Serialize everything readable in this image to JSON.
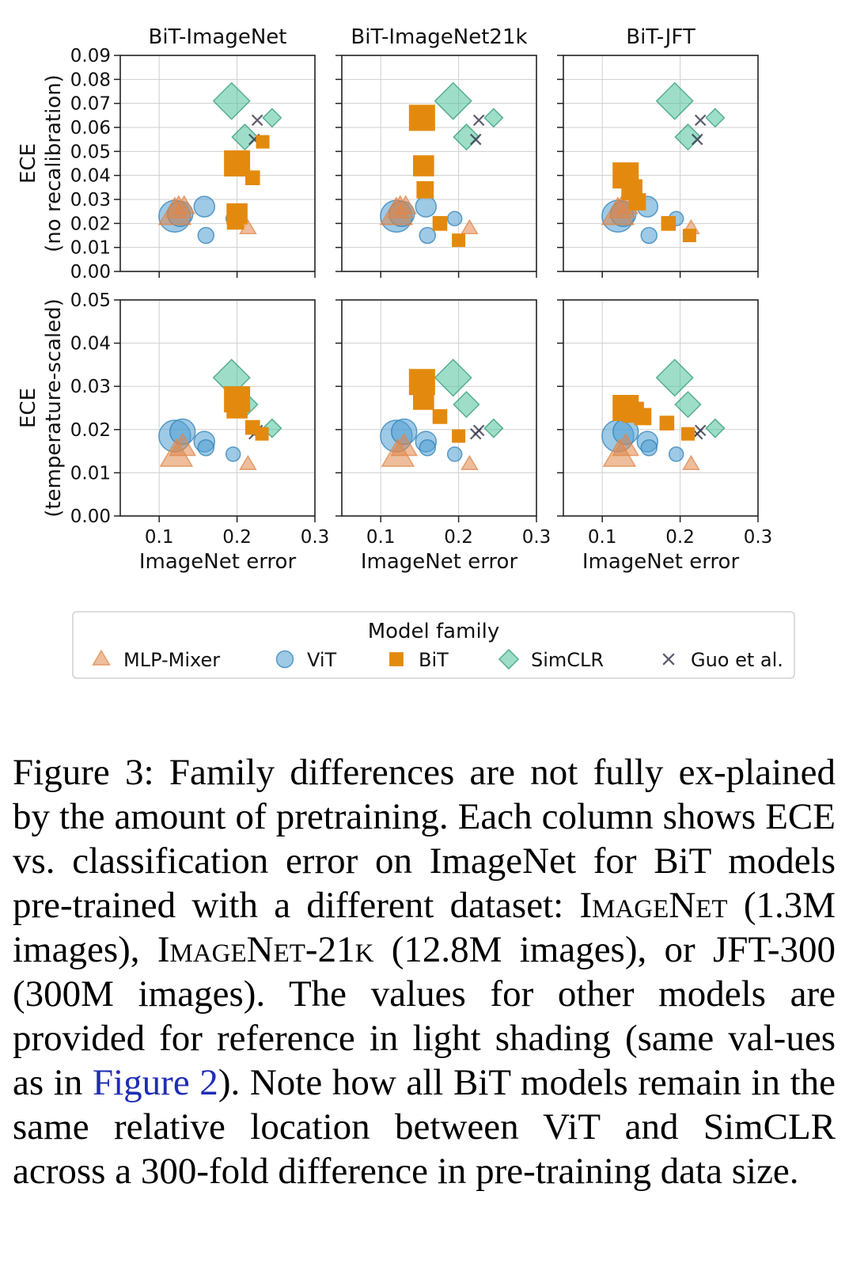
{
  "chart_data": {
    "type": "scatter",
    "columns": [
      "BiT-ImageNet",
      "BiT-ImageNet21k",
      "BiT-JFT"
    ],
    "rows": [
      {
        "ylabel": [
          "ECE",
          "(no recalibration)"
        ],
        "ylim": [
          0,
          0.09
        ],
        "yticks": [
          "0.00",
          "0.01",
          "0.02",
          "0.03",
          "0.04",
          "0.05",
          "0.06",
          "0.07",
          "0.08",
          "0.09"
        ]
      },
      {
        "ylabel": [
          "ECE",
          "(temperature-scaled)"
        ],
        "ylim": [
          0,
          0.05
        ],
        "yticks": [
          "0.00",
          "0.01",
          "0.02",
          "0.03",
          "0.04",
          "0.05"
        ]
      }
    ],
    "xlabel": "ImageNet error",
    "xlim": [
      0.05,
      0.3
    ],
    "xticks": [
      "0.1",
      "0.2",
      "0.3"
    ],
    "grid": true,
    "legend": {
      "title": "Model family",
      "placement": "bottom",
      "entries": [
        {
          "name": "MLP-Mixer",
          "marker": "triangle",
          "color": "#e0874a"
        },
        {
          "name": "ViT",
          "marker": "circle",
          "color": "#4f9fd2"
        },
        {
          "name": "BiT",
          "marker": "square",
          "color": "#e38a0e"
        },
        {
          "name": "SimCLR",
          "marker": "diamond",
          "color": "#4fc39a"
        },
        {
          "name": "Guo et al.",
          "marker": "x",
          "color": "#3d3d55"
        }
      ]
    },
    "reference_points": {
      "row1": [
        {
          "family": "MLP-Mixer",
          "x": 0.12,
          "y": 0.024,
          "size": 2.0
        },
        {
          "family": "MLP-Mixer",
          "x": 0.125,
          "y": 0.026,
          "size": 1.6
        },
        {
          "family": "MLP-Mixer",
          "x": 0.132,
          "y": 0.027,
          "size": 1.3
        },
        {
          "family": "MLP-Mixer",
          "x": 0.214,
          "y": 0.018,
          "size": 1.0
        },
        {
          "family": "ViT",
          "x": 0.12,
          "y": 0.023,
          "size": 2.0
        },
        {
          "family": "ViT",
          "x": 0.127,
          "y": 0.024,
          "size": 1.6
        },
        {
          "family": "ViT",
          "x": 0.158,
          "y": 0.027,
          "size": 1.3
        },
        {
          "family": "ViT",
          "x": 0.16,
          "y": 0.015,
          "size": 1.0
        },
        {
          "family": "ViT",
          "x": 0.195,
          "y": 0.022,
          "size": 0.9
        },
        {
          "family": "SimCLR",
          "x": 0.193,
          "y": 0.071,
          "size": 2.0
        },
        {
          "family": "SimCLR",
          "x": 0.21,
          "y": 0.056,
          "size": 1.4
        },
        {
          "family": "SimCLR",
          "x": 0.245,
          "y": 0.064,
          "size": 1.0
        },
        {
          "family": "Guo et al.",
          "x": 0.226,
          "y": 0.063,
          "size": 1.0
        },
        {
          "family": "Guo et al.",
          "x": 0.222,
          "y": 0.055,
          "size": 1.0
        }
      ],
      "row2": [
        {
          "family": "MLP-Mixer",
          "x": 0.122,
          "y": 0.014,
          "size": 2.0
        },
        {
          "family": "MLP-Mixer",
          "x": 0.13,
          "y": 0.016,
          "size": 1.6
        },
        {
          "family": "MLP-Mixer",
          "x": 0.214,
          "y": 0.012,
          "size": 1.0
        },
        {
          "family": "ViT",
          "x": 0.12,
          "y": 0.0185,
          "size": 2.0
        },
        {
          "family": "ViT",
          "x": 0.13,
          "y": 0.0195,
          "size": 1.6
        },
        {
          "family": "ViT",
          "x": 0.158,
          "y": 0.0172,
          "size": 1.3
        },
        {
          "family": "ViT",
          "x": 0.16,
          "y": 0.0158,
          "size": 1.0
        },
        {
          "family": "ViT",
          "x": 0.195,
          "y": 0.0143,
          "size": 0.9
        },
        {
          "family": "SimCLR",
          "x": 0.193,
          "y": 0.032,
          "size": 2.0
        },
        {
          "family": "SimCLR",
          "x": 0.21,
          "y": 0.0258,
          "size": 1.4
        },
        {
          "family": "SimCLR",
          "x": 0.245,
          "y": 0.0203,
          "size": 1.0
        },
        {
          "family": "Guo et al.",
          "x": 0.226,
          "y": 0.0198,
          "size": 1.0
        },
        {
          "family": "Guo et al.",
          "x": 0.222,
          "y": 0.019,
          "size": 1.0
        }
      ]
    },
    "bit_points": [
      {
        "row1": [
          {
            "x": 0.2,
            "y": 0.045,
            "size": 2.0
          },
          {
            "x": 0.2,
            "y": 0.024,
            "size": 1.6
          },
          {
            "x": 0.198,
            "y": 0.021,
            "size": 1.3
          },
          {
            "x": 0.22,
            "y": 0.039,
            "size": 1.1
          },
          {
            "x": 0.233,
            "y": 0.054,
            "size": 1.0
          }
        ],
        "row2": [
          {
            "x": 0.2,
            "y": 0.027,
            "size": 2.0
          },
          {
            "x": 0.2,
            "y": 0.025,
            "size": 1.6
          },
          {
            "x": 0.22,
            "y": 0.0205,
            "size": 1.1
          },
          {
            "x": 0.232,
            "y": 0.019,
            "size": 1.0
          }
        ]
      },
      {
        "row1": [
          {
            "x": 0.153,
            "y": 0.064,
            "size": 2.0
          },
          {
            "x": 0.155,
            "y": 0.044,
            "size": 1.6
          },
          {
            "x": 0.157,
            "y": 0.034,
            "size": 1.3
          },
          {
            "x": 0.176,
            "y": 0.02,
            "size": 1.1
          },
          {
            "x": 0.2,
            "y": 0.013,
            "size": 1.0
          }
        ],
        "row2": [
          {
            "x": 0.153,
            "y": 0.031,
            "size": 2.0
          },
          {
            "x": 0.155,
            "y": 0.027,
            "size": 1.6
          },
          {
            "x": 0.176,
            "y": 0.023,
            "size": 1.1
          },
          {
            "x": 0.2,
            "y": 0.0185,
            "size": 1.0
          }
        ]
      },
      {
        "row1": [
          {
            "x": 0.13,
            "y": 0.04,
            "size": 2.0
          },
          {
            "x": 0.138,
            "y": 0.034,
            "size": 1.6
          },
          {
            "x": 0.145,
            "y": 0.029,
            "size": 1.3
          },
          {
            "x": 0.185,
            "y": 0.02,
            "size": 1.1
          },
          {
            "x": 0.212,
            "y": 0.015,
            "size": 1.0
          }
        ],
        "row2": [
          {
            "x": 0.13,
            "y": 0.025,
            "size": 2.0
          },
          {
            "x": 0.14,
            "y": 0.024,
            "size": 1.6
          },
          {
            "x": 0.152,
            "y": 0.023,
            "size": 1.3
          },
          {
            "x": 0.183,
            "y": 0.0215,
            "size": 1.1
          },
          {
            "x": 0.21,
            "y": 0.019,
            "size": 1.0
          }
        ]
      }
    ]
  },
  "caption": {
    "label": "Figure 3:",
    "part1": "Family differences are not fully ex-plained by the amount of pretraining. Each column shows ECE vs. classification error on ImageNet for BiT models pre-trained with a different dataset:",
    "ds1": "ImageNet",
    "ds1_detail": "(1.3M images),",
    "ds2": "ImageNet-21k",
    "ds2_detail": "(12.8M images), or JFT-300 (300M images). The values for other models are provided for reference in light shading (same val-ues as in",
    "ref": "Figure 2",
    "part2": "). Note how all BiT models remain in the same relative location between ViT and SimCLR across a 300-fold difference in pre-training data size."
  }
}
